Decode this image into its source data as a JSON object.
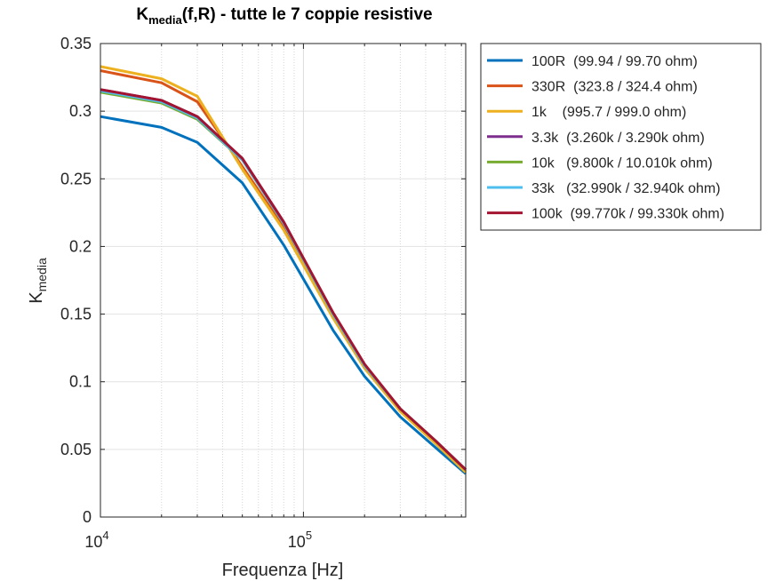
{
  "chart_data": {
    "type": "line",
    "title_main": "K",
    "title_sub": "media",
    "title_rest": "(f,R) - tutte le 7 coppie resistive",
    "xlabel": "Frequenza [Hz]",
    "ylabel_main": "K",
    "ylabel_sub": "media",
    "xscale": "log",
    "xlim": [
      10000,
      630000
    ],
    "ylim": [
      0,
      0.35
    ],
    "yticks": [
      0,
      0.05,
      0.1,
      0.15,
      0.2,
      0.25,
      0.3,
      0.35
    ],
    "yticklabels": [
      "0",
      "0.05",
      "0.1",
      "0.15",
      "0.2",
      "0.25",
      "0.3",
      "0.35"
    ],
    "xticks": [
      {
        "base": "10",
        "exp": "4",
        "value": 10000
      },
      {
        "base": "10",
        "exp": "5",
        "value": 100000
      }
    ],
    "grid": true,
    "legend_position": "outside-right-top",
    "x": [
      10000,
      20000,
      30000,
      50000,
      80000,
      140000,
      200000,
      300000,
      450000,
      630000
    ],
    "series": [
      {
        "name": "100R  (99.94 / 99.70 ohm)",
        "color": "#0072BD",
        "values": [
          0.296,
          0.288,
          0.277,
          0.247,
          0.201,
          0.138,
          0.104,
          0.074,
          0.051,
          0.032
        ]
      },
      {
        "name": "330R  (323.8 / 324.4 ohm)",
        "color": "#D95319",
        "values": [
          0.33,
          0.321,
          0.307,
          0.259,
          0.214,
          0.148,
          0.111,
          0.079,
          0.055,
          0.034
        ]
      },
      {
        "name": "1k    (995.7 / 999.0 ohm)",
        "color": "#EDB120",
        "values": [
          0.333,
          0.324,
          0.311,
          0.257,
          0.212,
          0.147,
          0.11,
          0.078,
          0.054,
          0.033
        ]
      },
      {
        "name": "3.3k  (3.260k / 3.290k ohm)",
        "color": "#7E2F8E",
        "values": [
          0.316,
          0.308,
          0.296,
          0.265,
          0.218,
          0.15,
          0.112,
          0.08,
          0.056,
          0.035
        ]
      },
      {
        "name": "10k   (9.800k / 10.010k ohm)",
        "color": "#77AC30",
        "values": [
          0.314,
          0.306,
          0.294,
          0.264,
          0.217,
          0.15,
          0.112,
          0.08,
          0.056,
          0.035
        ]
      },
      {
        "name": "33k   (32.990k / 32.940k ohm)",
        "color": "#4DBEEE",
        "values": [
          0.315,
          0.307,
          0.295,
          0.264,
          0.217,
          0.15,
          0.112,
          0.08,
          0.056,
          0.035
        ]
      },
      {
        "name": "100k  (99.770k / 99.330k ohm)",
        "color": "#A2142F",
        "values": [
          0.316,
          0.308,
          0.296,
          0.265,
          0.218,
          0.151,
          0.113,
          0.08,
          0.056,
          0.035
        ]
      }
    ]
  }
}
